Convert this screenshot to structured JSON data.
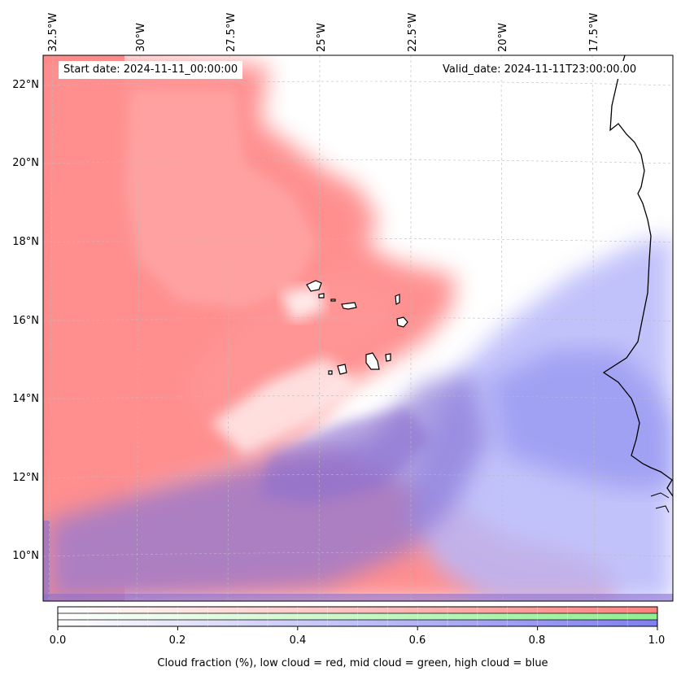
{
  "map": {
    "start_date_text": "Start date: 2024-11-11_00:00:00",
    "valid_date_text": "Valid_date: 2024-11-11T23:00:00.00",
    "longitude_labels": [
      "32.5°W",
      "30°W",
      "27.5°W",
      "25°W",
      "22.5°W",
      "20°W",
      "17.5°W"
    ],
    "latitude_labels": [
      "22°N",
      "20°N",
      "18°N",
      "16°N",
      "14°N",
      "12°N",
      "10°N"
    ],
    "layers": [
      {
        "name": "low cloud",
        "color": "#ff7f7f"
      },
      {
        "name": "mid cloud",
        "color": "#7fef7f"
      },
      {
        "name": "high cloud",
        "color": "#7f7ff0"
      }
    ],
    "coastline_color": "#000000"
  },
  "colorbar": {
    "tick_labels": [
      "0.0",
      "0.2",
      "0.4",
      "0.6",
      "0.8",
      "1.0"
    ],
    "title": "Cloud fraction (%), low cloud = red, mid cloud = green, high cloud = blue",
    "low_color": "#ff7f7f",
    "mid_color": "#8ef08e",
    "high_color": "#7f7ff0"
  }
}
